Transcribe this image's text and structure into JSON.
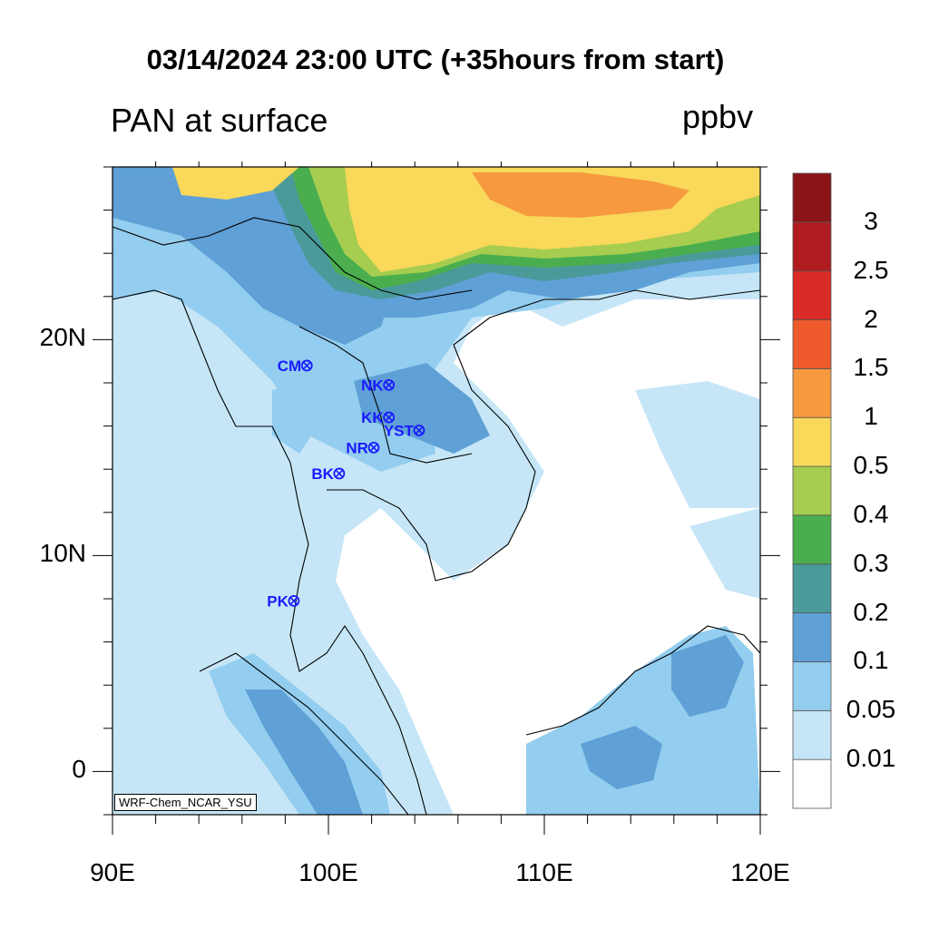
{
  "title": "03/14/2024 23:00 UTC (+35hours from start)",
  "left_title": "PAN at surface",
  "right_title": "ppbv",
  "credit": "WRF-Chem_NCAR_YSU",
  "map": {
    "lon_range": [
      90,
      120
    ],
    "lat_range": [
      -2,
      28
    ],
    "lon_ticks": [
      {
        "value": 90,
        "label": "90E"
      },
      {
        "value": 100,
        "label": "100E"
      },
      {
        "value": 110,
        "label": "110E"
      },
      {
        "value": 120,
        "label": "120E"
      }
    ],
    "lat_ticks": [
      {
        "value": 0,
        "label": "0"
      },
      {
        "value": 10,
        "label": "10N"
      },
      {
        "value": 20,
        "label": "20N"
      }
    ]
  },
  "stations": [
    {
      "label": "CM",
      "lon": 99.0,
      "lat": 18.8
    },
    {
      "label": "NK",
      "lon": 102.8,
      "lat": 17.9
    },
    {
      "label": "KK",
      "lon": 102.8,
      "lat": 16.4
    },
    {
      "label": "YST",
      "lon": 104.2,
      "lat": 15.8
    },
    {
      "label": "NR",
      "lon": 102.1,
      "lat": 15.0
    },
    {
      "label": "BK",
      "lon": 100.5,
      "lat": 13.8
    },
    {
      "label": "PK",
      "lon": 98.4,
      "lat": 7.9
    }
  ],
  "station_color": "#1a1aff",
  "colorbar": {
    "colors": [
      "#ffffff",
      "#c6e6f7",
      "#93cdef",
      "#5fa0d6",
      "#4a9a9a",
      "#4aae4f",
      "#a6cd4f",
      "#f9d85a",
      "#f6993f",
      "#ee5a2b",
      "#d92b27",
      "#b01c20",
      "#8a1418"
    ],
    "labels": [
      "0.01",
      "0.05",
      "0.1",
      "0.2",
      "0.3",
      "0.4",
      "0.5",
      "1",
      "1.5",
      "2",
      "2.5",
      "3"
    ]
  }
}
